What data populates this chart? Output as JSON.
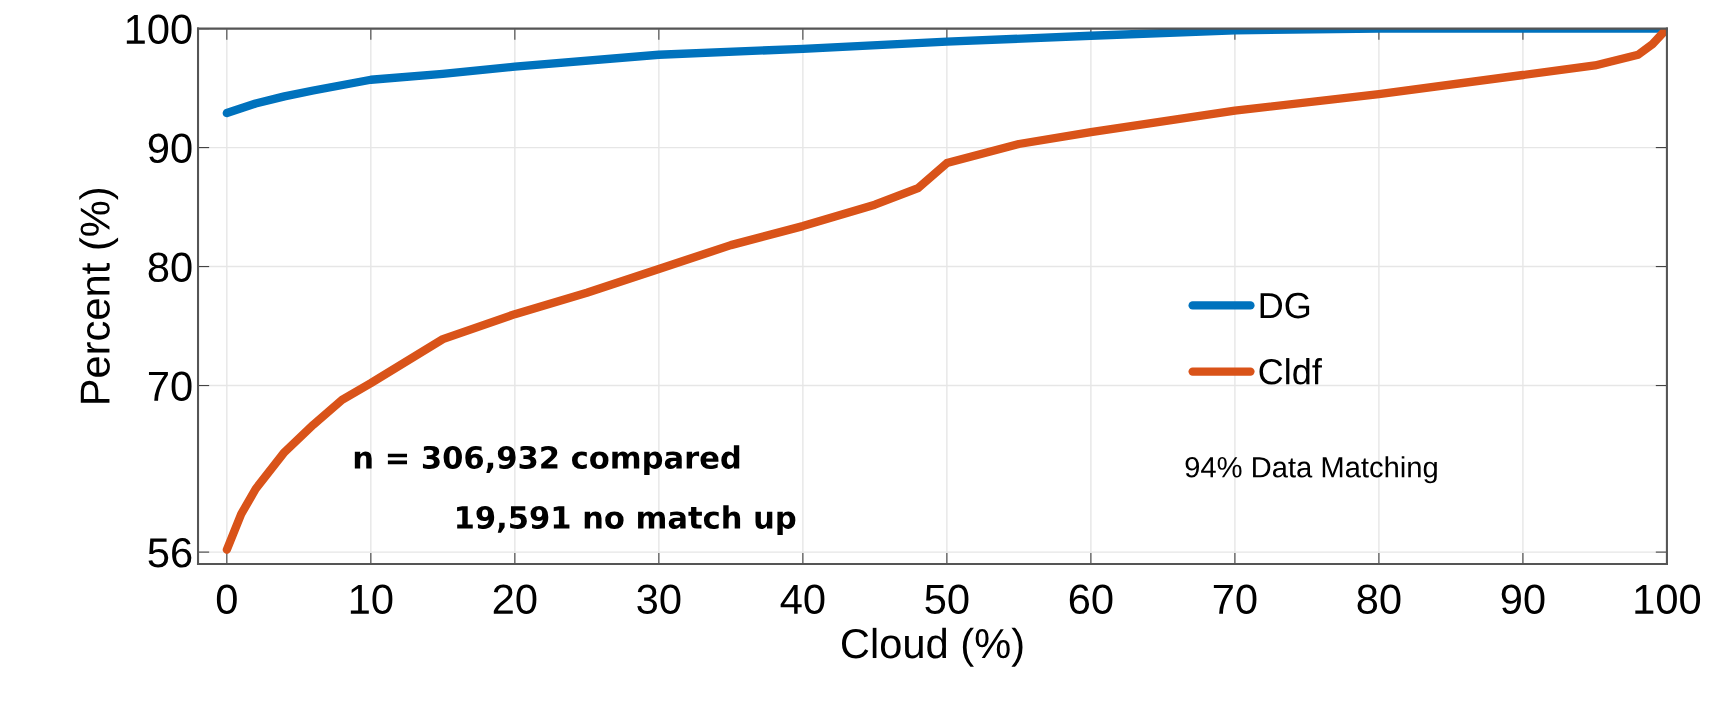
{
  "chart_data": {
    "type": "line",
    "xlabel": "Cloud (%)",
    "ylabel": "Percent (%)",
    "xlim": [
      -2,
      100
    ],
    "ylim": [
      55,
      100
    ],
    "xticks": [
      0,
      10,
      20,
      30,
      40,
      50,
      60,
      70,
      80,
      90,
      100
    ],
    "yticks": [
      56,
      70,
      80,
      90,
      100
    ],
    "grid": true,
    "legend": "right",
    "line_style": "solid",
    "series": [
      {
        "name": "DG",
        "color": "#0072bd",
        "x": [
          0,
          2,
          4,
          6,
          10,
          15,
          20,
          30,
          40,
          50,
          60,
          70,
          80,
          90,
          100
        ],
        "values": [
          92.9,
          93.7,
          94.3,
          94.8,
          95.7,
          96.2,
          96.8,
          97.8,
          98.3,
          98.9,
          99.4,
          99.85,
          100,
          100,
          100
        ]
      },
      {
        "name": "Cldf",
        "color": "#d95319",
        "x": [
          0,
          1,
          2,
          4,
          6,
          8,
          10,
          15,
          20,
          25,
          30,
          35,
          40,
          45,
          48,
          50,
          55,
          60,
          70,
          80,
          90,
          95,
          98,
          99,
          100
        ],
        "values": [
          56.2,
          59.2,
          61.3,
          64.4,
          66.7,
          68.8,
          70.2,
          73.9,
          76.0,
          77.8,
          79.8,
          81.8,
          83.4,
          85.2,
          86.6,
          88.7,
          90.3,
          91.3,
          93.1,
          94.5,
          96.1,
          96.9,
          97.8,
          98.7,
          100
        ]
      }
    ],
    "annotations": [
      "n = 306,932 compared",
      "19,591 no match up",
      "94% Data Matching"
    ]
  }
}
